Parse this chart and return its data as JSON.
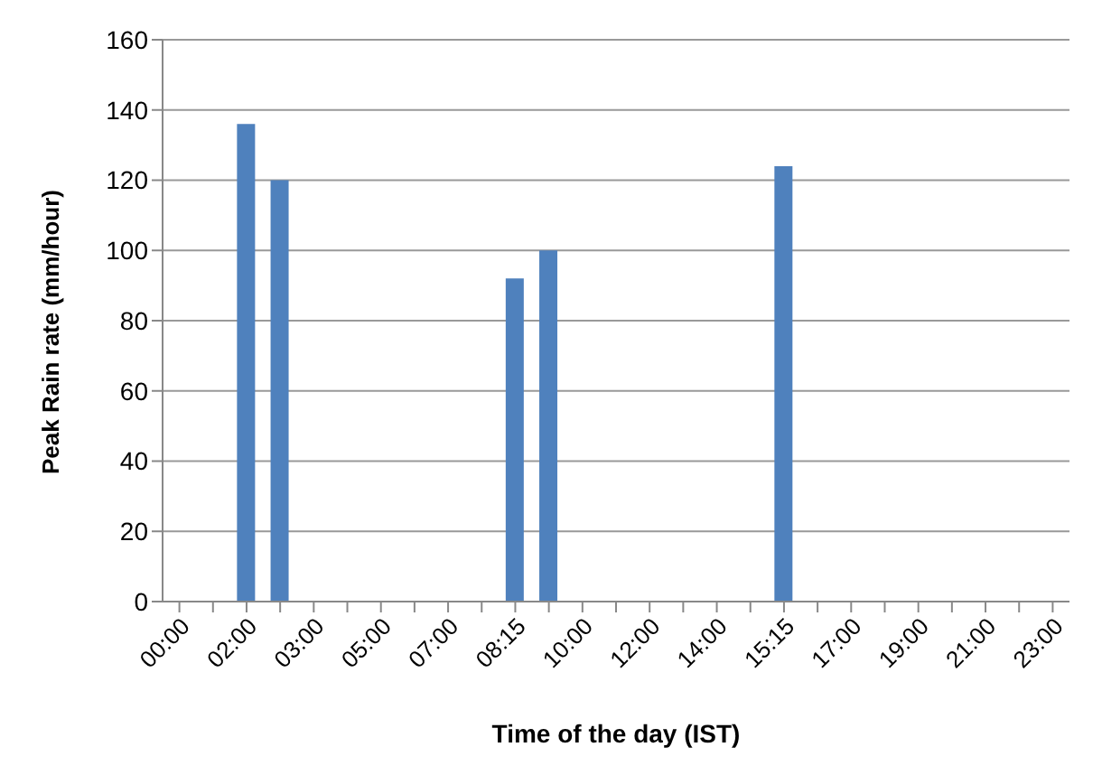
{
  "chart_data": {
    "type": "bar",
    "xlabel": "Time of the day (IST)",
    "ylabel": "Peak Rain rate (mm/hour)",
    "categories": [
      "00:00",
      null,
      "02:00",
      null,
      "03:00",
      null,
      "05:00",
      null,
      "07:00",
      null,
      "08:15",
      null,
      "10:00",
      null,
      "12:00",
      null,
      "14:00",
      null,
      "15:15",
      null,
      "17:00",
      null,
      "19:00",
      null,
      "21:00",
      null,
      "23:00"
    ],
    "values": [
      null,
      null,
      136,
      120,
      null,
      null,
      null,
      null,
      null,
      null,
      92,
      100,
      null,
      null,
      null,
      null,
      null,
      null,
      124,
      null,
      null,
      null,
      null,
      null,
      null,
      null,
      null
    ],
    "color": "#4f81bd",
    "ylim": [
      0,
      160
    ],
    "yticks": [
      0,
      20,
      40,
      60,
      80,
      100,
      120,
      140,
      160
    ],
    "grid": "y",
    "legend": false
  }
}
